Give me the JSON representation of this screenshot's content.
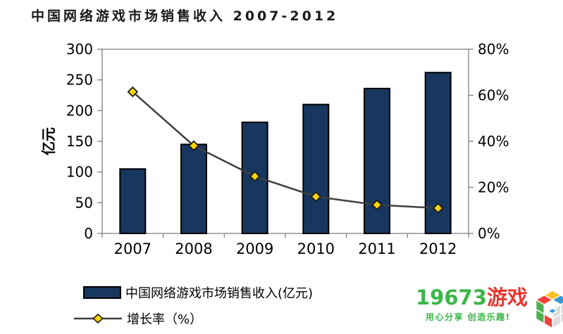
{
  "page": {
    "background": "#ffffff"
  },
  "chart_data": {
    "type": "bar",
    "title": "中国网络游戏市场销售收入 2007-2012",
    "categories": [
      "2007",
      "2008",
      "2009",
      "2010",
      "2011",
      "2012"
    ],
    "series": [
      {
        "name": "中国网络游戏市场销售收入(亿元)",
        "type": "bar",
        "axis": "left",
        "values": [
          105,
          145,
          181,
          210,
          236,
          262
        ],
        "color": "#17375E",
        "border_color": "#000000"
      },
      {
        "name": "增长率（%）",
        "type": "line",
        "axis": "right",
        "values": [
          61.5,
          38.1,
          24.8,
          16.0,
          12.4,
          11.0
        ],
        "color": "#3F3F3F",
        "marker": "diamond",
        "marker_color": "#FFD700",
        "marker_border": "#1a1a1a"
      }
    ],
    "left_axis": {
      "label": "亿元",
      "min": 0,
      "max": 300,
      "tick_step": 50,
      "ticks": [
        "0",
        "50",
        "100",
        "150",
        "200",
        "250",
        "300"
      ]
    },
    "right_axis": {
      "min": 0,
      "max": 80,
      "tick_step": 20,
      "ticks": [
        "0%",
        "20%",
        "40%",
        "60%",
        "80%"
      ]
    },
    "grid": false,
    "legend_position": "bottom-left",
    "axis_color": "#808080"
  },
  "legend": {
    "items": [
      {
        "label": "中国网络游戏市场销售收入(亿元)",
        "swatch": "bar"
      },
      {
        "label": "增长率（%）",
        "swatch": "line-diamond"
      }
    ]
  },
  "logo": {
    "brand_number": "19673",
    "brand_word": "游戏",
    "tagline": "用心分享 创造乐趣!",
    "number_color": "#3CB54A",
    "word_color": "#E8382F"
  }
}
